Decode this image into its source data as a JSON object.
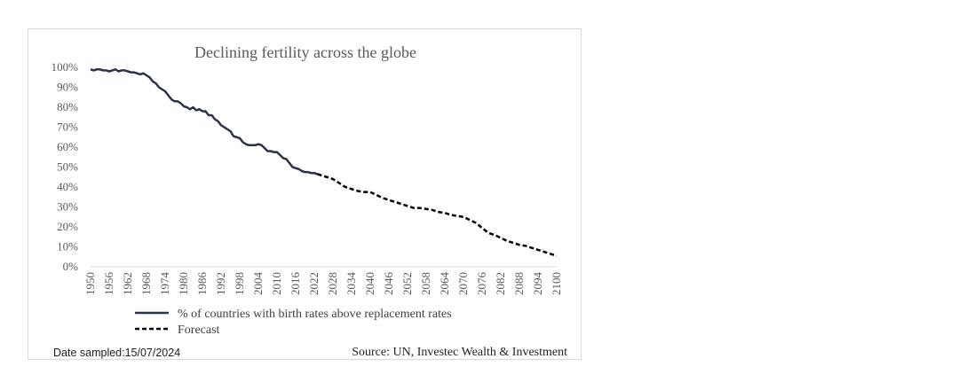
{
  "chart_data": {
    "type": "line",
    "title": "Declining fertility across the globe",
    "xlabel": "",
    "ylabel": "",
    "xlim": [
      1950,
      2100
    ],
    "ylim": [
      0,
      100
    ],
    "x_ticks": [
      1950,
      1956,
      1962,
      1968,
      1974,
      1980,
      1986,
      1992,
      1998,
      2004,
      2010,
      2016,
      2022,
      2028,
      2034,
      2040,
      2046,
      2052,
      2058,
      2064,
      2070,
      2076,
      2082,
      2088,
      2094,
      2100
    ],
    "y_ticks": [
      "0%",
      "10%",
      "20%",
      "30%",
      "40%",
      "50%",
      "60%",
      "70%",
      "80%",
      "90%",
      "100%"
    ],
    "grid": false,
    "legend_position": "bottom-left",
    "series": [
      {
        "name": "% of countries with birth rates above replacement rates",
        "style": "solid",
        "color": "#2b3447",
        "x": [
          1950,
          1951,
          1952,
          1953,
          1954,
          1955,
          1956,
          1957,
          1958,
          1959,
          1960,
          1961,
          1962,
          1963,
          1964,
          1965,
          1966,
          1967,
          1968,
          1969,
          1970,
          1971,
          1972,
          1973,
          1974,
          1975,
          1976,
          1977,
          1978,
          1979,
          1980,
          1981,
          1982,
          1983,
          1984,
          1985,
          1986,
          1987,
          1988,
          1989,
          1990,
          1991,
          1992,
          1993,
          1994,
          1995,
          1996,
          1997,
          1998,
          1999,
          2000,
          2001,
          2002,
          2003,
          2004,
          2005,
          2006,
          2007,
          2008,
          2009,
          2010,
          2011,
          2012,
          2013,
          2014,
          2015,
          2016,
          2017,
          2018,
          2019,
          2020,
          2021,
          2022,
          2023
        ],
        "values": [
          99,
          98.5,
          99,
          99,
          98.5,
          98.5,
          98,
          98.5,
          99,
          98,
          98.5,
          98.5,
          98,
          97.5,
          97.5,
          97,
          96.5,
          97,
          96,
          95,
          93,
          92,
          90,
          89,
          88,
          86,
          84,
          83,
          83,
          82,
          80.5,
          80,
          79,
          80,
          78.5,
          79,
          78,
          78,
          76,
          76,
          74,
          73,
          71,
          70,
          69,
          68,
          65.5,
          65,
          64.5,
          62.5,
          61.5,
          61,
          61,
          61,
          61.5,
          61,
          59.5,
          58,
          58,
          57.5,
          57.5,
          56,
          54.5,
          54,
          52,
          50,
          49.5,
          49,
          48,
          47.5,
          47.5,
          47,
          47,
          46.5
        ]
      },
      {
        "name": "Forecast",
        "style": "dashed",
        "color": "#000000",
        "x": [
          2023,
          2024,
          2026,
          2028,
          2030,
          2032,
          2034,
          2036,
          2038,
          2040,
          2042,
          2044,
          2046,
          2048,
          2050,
          2052,
          2054,
          2056,
          2058,
          2060,
          2062,
          2064,
          2066,
          2068,
          2070,
          2072,
          2074,
          2076,
          2078,
          2080,
          2082,
          2084,
          2086,
          2088,
          2090,
          2092,
          2094,
          2096,
          2098,
          2100
        ],
        "values": [
          46.5,
          46,
          45,
          44,
          42,
          40,
          39,
          38,
          37.5,
          37.5,
          36,
          34.5,
          33.5,
          32.5,
          31.5,
          30.5,
          29.5,
          29.5,
          29,
          28.5,
          27.5,
          27,
          26,
          25.5,
          25,
          23.5,
          22,
          19.5,
          17,
          16,
          14.5,
          13,
          12,
          11,
          10.5,
          9.5,
          8.5,
          7.5,
          6.5,
          5.5
        ]
      }
    ],
    "legend": [
      "% of countries with birth rates above replacement rates",
      "Forecast"
    ],
    "footer": {
      "date_sampled": "Date sampled:15/07/2024",
      "source": "Source: UN, Investec Wealth & Investment"
    }
  }
}
